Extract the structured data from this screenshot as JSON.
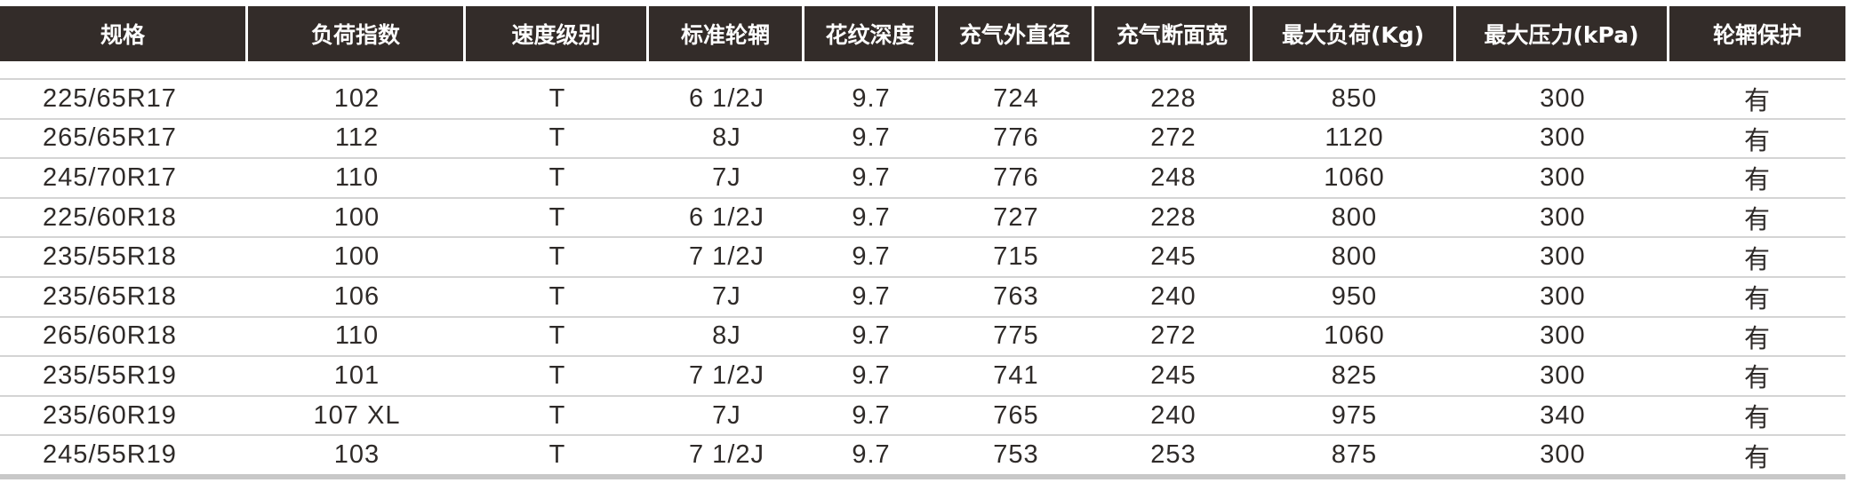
{
  "table": {
    "headers": [
      "规格",
      "负荷指数",
      "速度级别",
      "标准轮辋",
      "花纹深度",
      "充气外直径",
      "充气断面宽",
      "最大负荷(Kg)",
      "最大压力(kPa)",
      "轮辋保护"
    ],
    "rows": [
      [
        "225/65R17",
        "102",
        "T",
        "6 1/2J",
        "9.7",
        "724",
        "228",
        "850",
        "300",
        "有"
      ],
      [
        "265/65R17",
        "112",
        "T",
        "8J",
        "9.7",
        "776",
        "272",
        "1120",
        "300",
        "有"
      ],
      [
        "245/70R17",
        "110",
        "T",
        "7J",
        "9.7",
        "776",
        "248",
        "1060",
        "300",
        "有"
      ],
      [
        "225/60R18",
        "100",
        "T",
        "6 1/2J",
        "9.7",
        "727",
        "228",
        "800",
        "300",
        "有"
      ],
      [
        "235/55R18",
        "100",
        "T",
        "7 1/2J",
        "9.7",
        "715",
        "245",
        "800",
        "300",
        "有"
      ],
      [
        "235/65R18",
        "106",
        "T",
        "7J",
        "9.7",
        "763",
        "240",
        "950",
        "300",
        "有"
      ],
      [
        "265/60R18",
        "110",
        "T",
        "8J",
        "9.7",
        "775",
        "272",
        "1060",
        "300",
        "有"
      ],
      [
        "235/55R19",
        "101",
        "T",
        "7 1/2J",
        "9.7",
        "741",
        "245",
        "825",
        "300",
        "有"
      ],
      [
        "235/60R19",
        "107 XL",
        "T",
        "7J",
        "9.7",
        "765",
        "240",
        "975",
        "340",
        "有"
      ],
      [
        "245/55R19",
        "103",
        "T",
        "7 1/2J",
        "9.7",
        "753",
        "253",
        "875",
        "300",
        "有"
      ]
    ]
  },
  "colors": {
    "header_bg": "#332c29",
    "header_text": "#ffffff",
    "row_divider": "#d4d4d4",
    "text": "#2e2a28"
  }
}
